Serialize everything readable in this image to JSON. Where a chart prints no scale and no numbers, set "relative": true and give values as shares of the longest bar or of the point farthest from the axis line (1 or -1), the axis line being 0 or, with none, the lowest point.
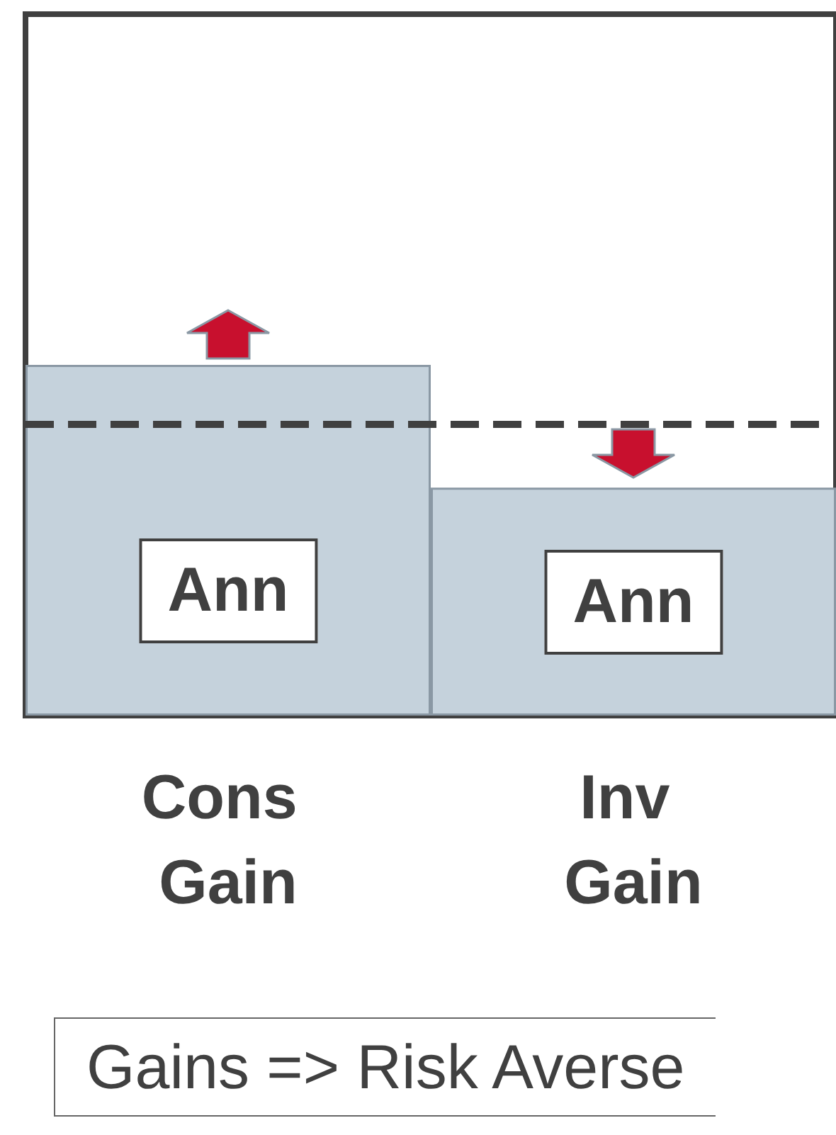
{
  "chart_data": {
    "type": "bar",
    "relative": true,
    "categories": [
      "Cons Gain",
      "Inv Gain"
    ],
    "values": [
      1,
      0.65
    ],
    "color": "#c5d2dc",
    "ref_lines": [
      {
        "axis": "y",
        "value": 0.83,
        "line_style": "dashed",
        "color": "#404040"
      }
    ],
    "annotations": [
      "Ann",
      "Ann",
      "Gains => Risk Averse"
    ]
  }
}
